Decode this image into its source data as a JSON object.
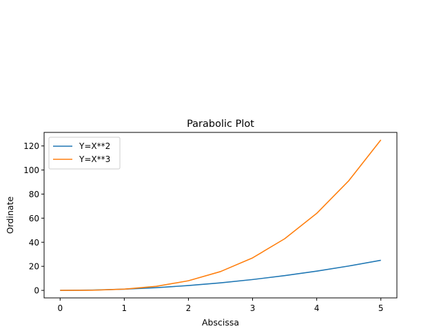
{
  "chart_data": {
    "type": "line",
    "title": "Parabolic Plot",
    "xlabel": "Abscissa",
    "ylabel": "Ordinate",
    "xlim": [
      -0.25,
      5.25
    ],
    "ylim": [
      -6.25,
      131.25
    ],
    "xticks": [
      0,
      1,
      2,
      3,
      4,
      5
    ],
    "yticks": [
      0,
      20,
      40,
      60,
      80,
      100,
      120
    ],
    "grid": false,
    "legend_position": "top-left",
    "series": [
      {
        "name": "Y=X**2",
        "color": "#1f77b4",
        "x": [
          0,
          0.5,
          1,
          1.5,
          2,
          2.5,
          3,
          3.5,
          4,
          4.5,
          5
        ],
        "y": [
          0,
          0.25,
          1,
          2.25,
          4,
          6.25,
          9,
          12.25,
          16,
          20.25,
          25
        ]
      },
      {
        "name": "Y=X**3",
        "color": "#ff7f0e",
        "x": [
          0,
          0.5,
          1,
          1.5,
          2,
          2.5,
          3,
          3.5,
          4,
          4.5,
          5
        ],
        "y": [
          0,
          0.125,
          1,
          3.375,
          8,
          15.625,
          27,
          42.875,
          64,
          91.125,
          125
        ]
      }
    ]
  }
}
